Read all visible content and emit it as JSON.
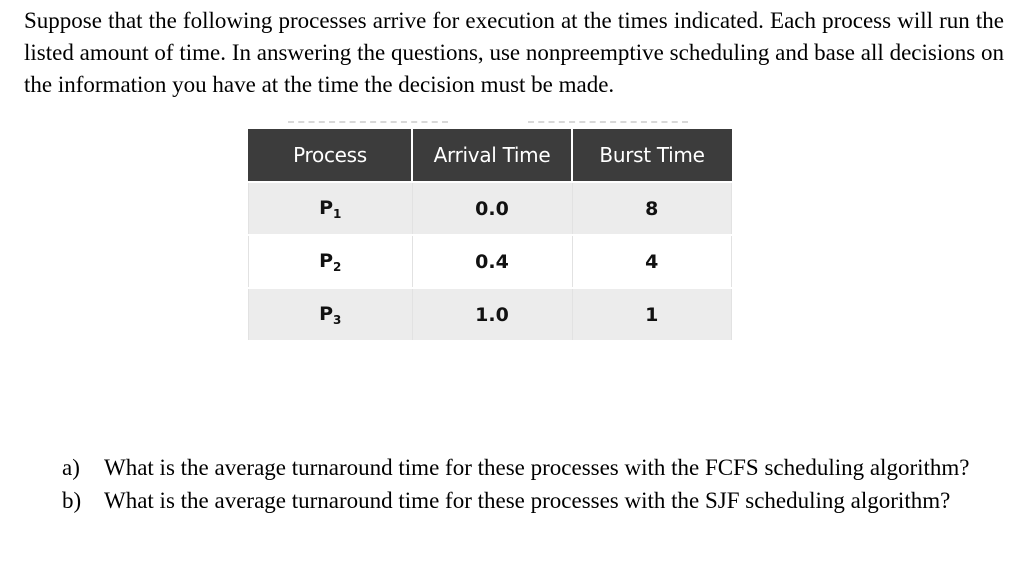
{
  "intro": "Suppose that the following processes arrive for execution at the times indicated. Each process will run the listed amount of time. In answering the questions, use nonpreemptive scheduling and base all decisions on the information you have at the time the decision must be made.",
  "table": {
    "headers": [
      "Process",
      "Arrival Time",
      "Burst Time"
    ],
    "rows": [
      {
        "process": "P",
        "sub": "1",
        "arrival": "0.0",
        "burst": "8"
      },
      {
        "process": "P",
        "sub": "2",
        "arrival": "0.4",
        "burst": "4"
      },
      {
        "process": "P",
        "sub": "3",
        "arrival": "1.0",
        "burst": "1"
      }
    ]
  },
  "questions": [
    {
      "marker": "a)",
      "text": "What is the average turnaround time for these processes with the FCFS scheduling algorithm?"
    },
    {
      "marker": "b)",
      "text": "What is the average turnaround time for these processes with the SJF scheduling algorithm?"
    }
  ]
}
